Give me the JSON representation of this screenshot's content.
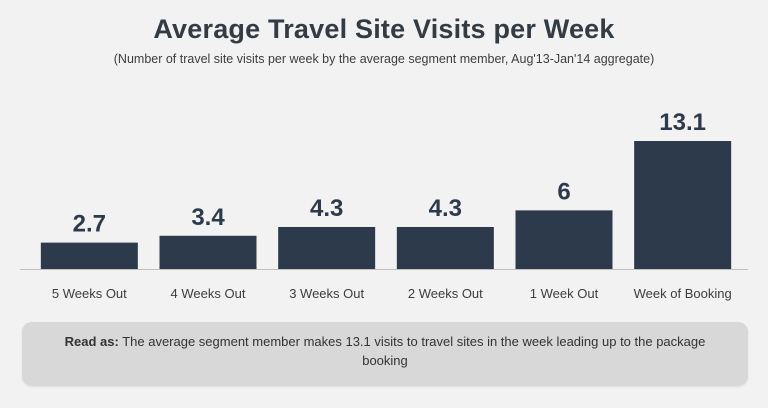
{
  "title": "Average Travel Site Visits per Week",
  "subtitle": "(Number of travel site visits per week by the average segment member, Aug'13-Jan'14 aggregate)",
  "note": {
    "lead": "Read as:",
    "text": " The average segment member makes 13.1 visits to travel sites in the week leading up to the package booking"
  },
  "colors": {
    "bar": "#2d3a4b",
    "baseline": "#bfbfbf",
    "background": "#f2f2f2"
  },
  "chart_data": {
    "type": "bar",
    "categories": [
      "5 Weeks Out",
      "4 Weeks Out",
      "3 Weeks Out",
      "2 Weeks Out",
      "1 Week Out",
      "Week of Booking"
    ],
    "values": [
      2.7,
      3.4,
      4.3,
      4.3,
      6,
      13.1
    ],
    "value_labels": [
      "2.7",
      "3.4",
      "4.3",
      "4.3",
      "6",
      "13.1"
    ],
    "title": "Average Travel Site Visits per Week",
    "xlabel": "",
    "ylabel": "",
    "ylim": [
      0,
      13.1
    ],
    "grid": false,
    "legend": "none"
  }
}
